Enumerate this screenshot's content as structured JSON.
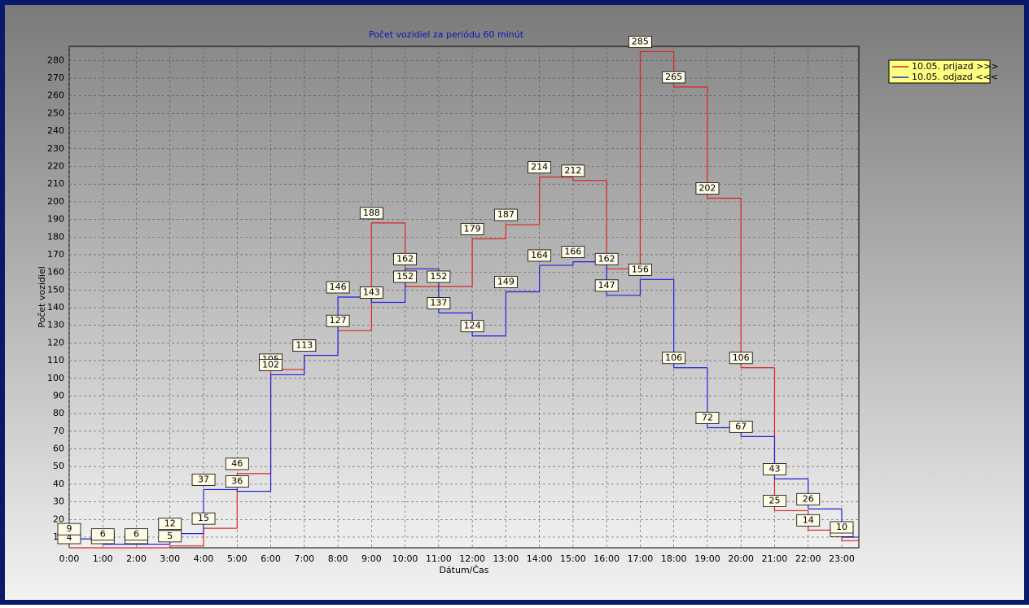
{
  "chart_data": {
    "type": "step",
    "title": "Počet vozidiel za periódu 60 minút",
    "y_label": "Počet vozidiel",
    "x_label": "Dátum/Čas",
    "categories": [
      "0:00",
      "1:00",
      "2:00",
      "3:00",
      "4:00",
      "5:00",
      "6:00",
      "7:00",
      "8:00",
      "9:00",
      "10:00",
      "11:00",
      "12:00",
      "13:00",
      "14:00",
      "15:00",
      "16:00",
      "17:00",
      "18:00",
      "19:00",
      "20:00",
      "21:00",
      "22:00",
      "23:00"
    ],
    "series": [
      {
        "name": "10.05.  prijazd >>>",
        "color": "#e02020",
        "values": [
          4,
          4,
          4,
          5,
          15,
          46,
          105,
          113,
          127,
          188,
          152,
          152,
          179,
          187,
          214,
          212,
          162,
          285,
          265,
          202,
          106,
          25,
          14,
          8
        ]
      },
      {
        "name": "10.05.  odjazd <<<",
        "color": "#2020e0",
        "values": [
          9,
          6,
          6,
          12,
          37,
          36,
          102,
          113,
          146,
          143,
          162,
          137,
          124,
          149,
          164,
          166,
          147,
          156,
          106,
          72,
          67,
          43,
          26,
          10
        ]
      }
    ],
    "ylim": [
      4,
      288
    ],
    "yticks": [
      10,
      20,
      30,
      40,
      50,
      60,
      70,
      80,
      90,
      100,
      110,
      120,
      130,
      140,
      150,
      160,
      170,
      180,
      190,
      200,
      210,
      220,
      230,
      240,
      250,
      260,
      270,
      280
    ],
    "grid": true,
    "legend": "top-right"
  }
}
